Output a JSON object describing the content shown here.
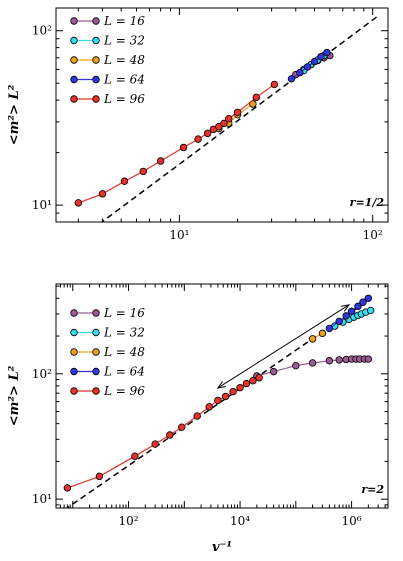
{
  "chart_data": [
    {
      "type": "scatter",
      "panel_label": "r=1/2",
      "ylabel": "<m²> L²",
      "xlabel": "",
      "xscale": "log",
      "yscale": "log",
      "xlim": [
        2.3,
        120
      ],
      "ylim": [
        8,
        135
      ],
      "x_ticks": [
        {
          "v": 10,
          "t": "10¹"
        },
        {
          "v": 100,
          "t": "10²"
        }
      ],
      "y_ticks": [
        {
          "v": 10,
          "t": "10¹"
        },
        {
          "v": 100,
          "t": "10²"
        }
      ],
      "legend": {
        "position": "top-left"
      },
      "dashed_line": {
        "x": [
          3.5,
          105
        ],
        "y": [
          7.2,
          120
        ]
      },
      "series": [
        {
          "name": "L = 16",
          "color": "#9a5a92",
          "x": [
            40,
            44,
            48,
            52,
            56,
            60
          ],
          "y": [
            56,
            60,
            64,
            67.5,
            70,
            72
          ]
        },
        {
          "name": "L = 32",
          "color": "#33ddee",
          "x": [
            44,
            48,
            52,
            56
          ],
          "y": [
            59,
            64,
            68,
            72
          ]
        },
        {
          "name": "L = 48",
          "color": "#e8a21e",
          "x": [
            16,
            18,
            20,
            24
          ],
          "y": [
            27.5,
            29.5,
            33,
            38
          ]
        },
        {
          "name": "L = 64",
          "color": "#3035dd",
          "x": [
            38,
            42,
            46,
            50,
            54,
            58
          ],
          "y": [
            53,
            57.5,
            62,
            66.5,
            71,
            75
          ]
        },
        {
          "name": "L = 96",
          "color": "#e8312a",
          "x": [
            3,
            4,
            5.2,
            6.5,
            8,
            10.5,
            12.5,
            14,
            15,
            16,
            17,
            18,
            20,
            25,
            31
          ],
          "y": [
            10.3,
            11.6,
            13.7,
            15.6,
            17.9,
            21.4,
            23.9,
            25.8,
            27.2,
            28.2,
            29.4,
            31.3,
            34,
            41.5,
            49.2
          ]
        }
      ]
    },
    {
      "type": "scatter",
      "panel_label": "r=2",
      "ylabel": "<m²> L²",
      "xlabel": "v⁻¹",
      "xscale": "log",
      "yscale": "log",
      "xlim": [
        5,
        4500000
      ],
      "ylim": [
        8.5,
        520
      ],
      "x_ticks": [
        {
          "v": 100,
          "t": "10²"
        },
        {
          "v": 10000,
          "t": "10⁴"
        },
        {
          "v": 1000000,
          "t": "10⁶"
        }
      ],
      "y_ticks": [
        {
          "v": 10,
          "t": "10¹"
        },
        {
          "v": 100,
          "t": "10²"
        }
      ],
      "legend": {
        "position": "top-left"
      },
      "dashed_line": {
        "x": [
          7,
          1200000
        ],
        "y": [
          8.2,
          330
        ]
      },
      "arrow": {
        "from": {
          "x": 900000,
          "y": 355
        },
        "to": {
          "x": 4000,
          "y": 77
        }
      },
      "series": [
        {
          "name": "L = 16",
          "color": "#9a5a92",
          "x": [
            20000,
            40000,
            100000,
            200000,
            400000,
            600000,
            800000,
            1000000,
            1200000,
            1400000,
            1700000,
            2000000
          ],
          "y": [
            96,
            104,
            116,
            122,
            127,
            129,
            130,
            131,
            131,
            131,
            131,
            131
          ]
        },
        {
          "name": "L = 32",
          "color": "#33ddee",
          "x": [
            500000,
            700000,
            900000,
            1100000,
            1300000,
            1500000,
            1800000,
            2200000
          ],
          "y": [
            240,
            258,
            272,
            283,
            292,
            300,
            310,
            320
          ]
        },
        {
          "name": "L = 48",
          "color": "#e8a21e",
          "x": [
            200000,
            300000
          ],
          "y": [
            190,
            210
          ]
        },
        {
          "name": "L = 64",
          "color": "#3035dd",
          "x": [
            400000,
            600000,
            800000,
            1000000,
            1300000,
            1600000,
            2000000
          ],
          "y": [
            230,
            262,
            290,
            315,
            345,
            372,
            400
          ]
        },
        {
          "name": "L = 96",
          "color": "#e8312a",
          "x": [
            8,
            30,
            130,
            300,
            550,
            900,
            1700,
            2800,
            4000,
            5500,
            7500,
            10000,
            13000,
            17000,
            22000
          ],
          "y": [
            12.3,
            15.2,
            22,
            27.5,
            32.5,
            37.5,
            46,
            54.5,
            61.3,
            66,
            72,
            77.5,
            83.5,
            88,
            93
          ]
        }
      ]
    }
  ]
}
